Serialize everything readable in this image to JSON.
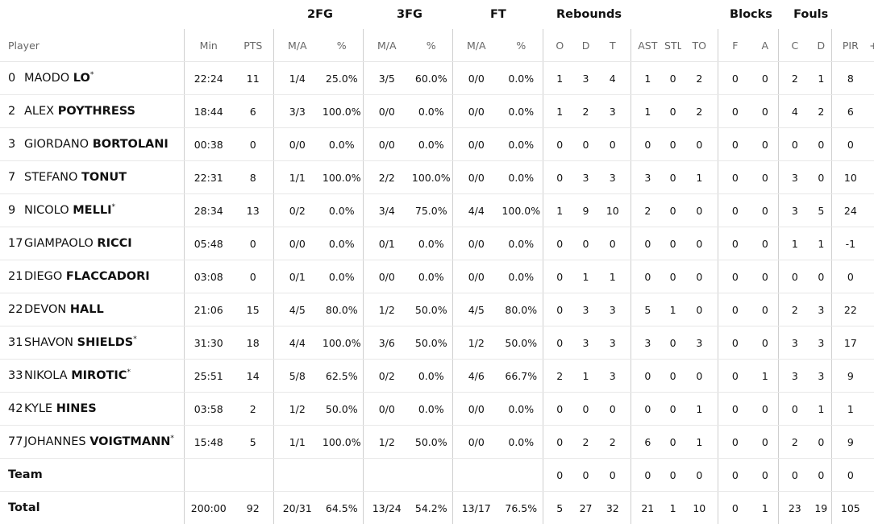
{
  "groups": {
    "fg2": "2FG",
    "fg3": "3FG",
    "ft": "FT",
    "reb": "Rebounds",
    "blk": "Blocks",
    "fouls": "Fouls"
  },
  "headers": {
    "player": "Player",
    "min": "Min",
    "pts": "PTS",
    "fg2_ma": "M/A",
    "fg2_pct": "%",
    "fg3_ma": "M/A",
    "fg3_pct": "%",
    "ft_ma": "M/A",
    "ft_pct": "%",
    "reb_o": "O",
    "reb_d": "D",
    "reb_t": "T",
    "ast": "AST",
    "stl": "STL",
    "to": "TO",
    "blk_f": "F",
    "blk_a": "A",
    "foul_c": "C",
    "foul_d": "D",
    "pir": "PIR",
    "extra": "+"
  },
  "players": [
    {
      "num": "0",
      "first": "MAODO",
      "last": "LO",
      "star": "*",
      "min": "22:24",
      "pts": "11",
      "fg2": "1/4",
      "fg2p": "25.0%",
      "fg3": "3/5",
      "fg3p": "60.0%",
      "ft": "0/0",
      "ftp": "0.0%",
      "o": "1",
      "d": "3",
      "t": "4",
      "ast": "1",
      "stl": "0",
      "to": "2",
      "bf": "0",
      "ba": "0",
      "fc": "2",
      "fd": "1",
      "pir": "8"
    },
    {
      "num": "2",
      "first": "ALEX",
      "last": "POYTHRESS",
      "star": "",
      "min": "18:44",
      "pts": "6",
      "fg2": "3/3",
      "fg2p": "100.0%",
      "fg3": "0/0",
      "fg3p": "0.0%",
      "ft": "0/0",
      "ftp": "0.0%",
      "o": "1",
      "d": "2",
      "t": "3",
      "ast": "1",
      "stl": "0",
      "to": "2",
      "bf": "0",
      "ba": "0",
      "fc": "4",
      "fd": "2",
      "pir": "6"
    },
    {
      "num": "3",
      "first": "GIORDANO",
      "last": "BORTOLANI",
      "star": "",
      "min": "00:38",
      "pts": "0",
      "fg2": "0/0",
      "fg2p": "0.0%",
      "fg3": "0/0",
      "fg3p": "0.0%",
      "ft": "0/0",
      "ftp": "0.0%",
      "o": "0",
      "d": "0",
      "t": "0",
      "ast": "0",
      "stl": "0",
      "to": "0",
      "bf": "0",
      "ba": "0",
      "fc": "0",
      "fd": "0",
      "pir": "0"
    },
    {
      "num": "7",
      "first": "STEFANO",
      "last": "TONUT",
      "star": "",
      "min": "22:31",
      "pts": "8",
      "fg2": "1/1",
      "fg2p": "100.0%",
      "fg3": "2/2",
      "fg3p": "100.0%",
      "ft": "0/0",
      "ftp": "0.0%",
      "o": "0",
      "d": "3",
      "t": "3",
      "ast": "3",
      "stl": "0",
      "to": "1",
      "bf": "0",
      "ba": "0",
      "fc": "3",
      "fd": "0",
      "pir": "10"
    },
    {
      "num": "9",
      "first": "NICOLO",
      "last": "MELLI",
      "star": "*",
      "min": "28:34",
      "pts": "13",
      "fg2": "0/2",
      "fg2p": "0.0%",
      "fg3": "3/4",
      "fg3p": "75.0%",
      "ft": "4/4",
      "ftp": "100.0%",
      "o": "1",
      "d": "9",
      "t": "10",
      "ast": "2",
      "stl": "0",
      "to": "0",
      "bf": "0",
      "ba": "0",
      "fc": "3",
      "fd": "5",
      "pir": "24"
    },
    {
      "num": "17",
      "first": "GIAMPAOLO",
      "last": "RICCI",
      "star": "",
      "min": "05:48",
      "pts": "0",
      "fg2": "0/0",
      "fg2p": "0.0%",
      "fg3": "0/1",
      "fg3p": "0.0%",
      "ft": "0/0",
      "ftp": "0.0%",
      "o": "0",
      "d": "0",
      "t": "0",
      "ast": "0",
      "stl": "0",
      "to": "0",
      "bf": "0",
      "ba": "0",
      "fc": "1",
      "fd": "1",
      "pir": "-1"
    },
    {
      "num": "21",
      "first": "DIEGO",
      "last": "FLACCADORI",
      "star": "",
      "min": "03:08",
      "pts": "0",
      "fg2": "0/1",
      "fg2p": "0.0%",
      "fg3": "0/0",
      "fg3p": "0.0%",
      "ft": "0/0",
      "ftp": "0.0%",
      "o": "0",
      "d": "1",
      "t": "1",
      "ast": "0",
      "stl": "0",
      "to": "0",
      "bf": "0",
      "ba": "0",
      "fc": "0",
      "fd": "0",
      "pir": "0"
    },
    {
      "num": "22",
      "first": "DEVON",
      "last": "HALL",
      "star": "",
      "min": "21:06",
      "pts": "15",
      "fg2": "4/5",
      "fg2p": "80.0%",
      "fg3": "1/2",
      "fg3p": "50.0%",
      "ft": "4/5",
      "ftp": "80.0%",
      "o": "0",
      "d": "3",
      "t": "3",
      "ast": "5",
      "stl": "1",
      "to": "0",
      "bf": "0",
      "ba": "0",
      "fc": "2",
      "fd": "3",
      "pir": "22"
    },
    {
      "num": "31",
      "first": "SHAVON",
      "last": "SHIELDS",
      "star": "*",
      "min": "31:30",
      "pts": "18",
      "fg2": "4/4",
      "fg2p": "100.0%",
      "fg3": "3/6",
      "fg3p": "50.0%",
      "ft": "1/2",
      "ftp": "50.0%",
      "o": "0",
      "d": "3",
      "t": "3",
      "ast": "3",
      "stl": "0",
      "to": "3",
      "bf": "0",
      "ba": "0",
      "fc": "3",
      "fd": "3",
      "pir": "17"
    },
    {
      "num": "33",
      "first": "NIKOLA",
      "last": "MIROTIC",
      "star": "*",
      "min": "25:51",
      "pts": "14",
      "fg2": "5/8",
      "fg2p": "62.5%",
      "fg3": "0/2",
      "fg3p": "0.0%",
      "ft": "4/6",
      "ftp": "66.7%",
      "o": "2",
      "d": "1",
      "t": "3",
      "ast": "0",
      "stl": "0",
      "to": "0",
      "bf": "0",
      "ba": "1",
      "fc": "3",
      "fd": "3",
      "pir": "9"
    },
    {
      "num": "42",
      "first": "KYLE",
      "last": "HINES",
      "star": "",
      "min": "03:58",
      "pts": "2",
      "fg2": "1/2",
      "fg2p": "50.0%",
      "fg3": "0/0",
      "fg3p": "0.0%",
      "ft": "0/0",
      "ftp": "0.0%",
      "o": "0",
      "d": "0",
      "t": "0",
      "ast": "0",
      "stl": "0",
      "to": "1",
      "bf": "0",
      "ba": "0",
      "fc": "0",
      "fd": "1",
      "pir": "1"
    },
    {
      "num": "77",
      "first": "JOHANNES",
      "last": "VOIGTMANN",
      "star": "*",
      "min": "15:48",
      "pts": "5",
      "fg2": "1/1",
      "fg2p": "100.0%",
      "fg3": "1/2",
      "fg3p": "50.0%",
      "ft": "0/0",
      "ftp": "0.0%",
      "o": "0",
      "d": "2",
      "t": "2",
      "ast": "6",
      "stl": "0",
      "to": "1",
      "bf": "0",
      "ba": "0",
      "fc": "2",
      "fd": "0",
      "pir": "9"
    }
  ],
  "team": {
    "label": "Team",
    "o": "0",
    "d": "0",
    "t": "0",
    "ast": "0",
    "stl": "0",
    "to": "0",
    "bf": "0",
    "ba": "0",
    "fc": "0",
    "fd": "0",
    "pir": "0"
  },
  "total": {
    "label": "Total",
    "min": "200:00",
    "pts": "92",
    "fg2": "20/31",
    "fg2p": "64.5%",
    "fg3": "13/24",
    "fg3p": "54.2%",
    "ft": "13/17",
    "ftp": "76.5%",
    "o": "5",
    "d": "27",
    "t": "32",
    "ast": "21",
    "stl": "1",
    "to": "10",
    "bf": "0",
    "ba": "1",
    "fc": "23",
    "fd": "19",
    "pir": "105"
  }
}
